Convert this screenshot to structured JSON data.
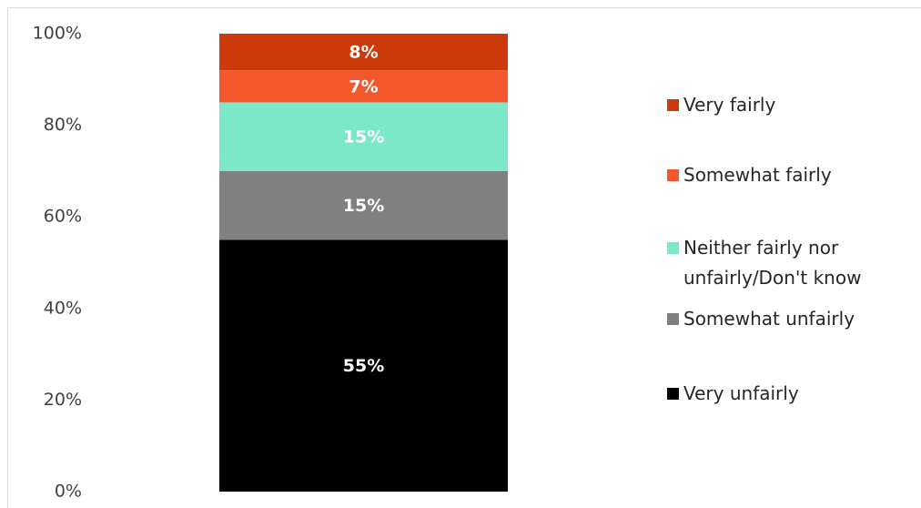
{
  "chart_data": {
    "type": "stacked_bar",
    "categories": [
      null
    ],
    "series": [
      {
        "name": "Very unfairly",
        "color": "#000000",
        "values": [
          55
        ],
        "value_labels": [
          "55%"
        ]
      },
      {
        "name": "Somewhat unfairly",
        "color": "#808080",
        "values": [
          15
        ],
        "value_labels": [
          "15%"
        ]
      },
      {
        "name": "Neither fairly nor unfairly/Don't know",
        "color": "#7de8c8",
        "values": [
          15
        ],
        "value_labels": [
          "15%"
        ]
      },
      {
        "name": "Somewhat fairly",
        "color": "#f4572c",
        "values": [
          7
        ],
        "value_labels": [
          "7%"
        ]
      },
      {
        "name": "Very fairly",
        "color": "#cc3a0c",
        "values": [
          8
        ],
        "value_labels": [
          "8%"
        ]
      }
    ],
    "ylim": [
      0,
      100
    ],
    "yticks": [
      {
        "value": 0,
        "label": "0%"
      },
      {
        "value": 20,
        "label": "20%"
      },
      {
        "value": 40,
        "label": "40%"
      },
      {
        "value": 60,
        "label": "60%"
      },
      {
        "value": 80,
        "label": "80%"
      },
      {
        "value": 100,
        "label": "100%"
      }
    ],
    "grid": false,
    "legend": "right"
  }
}
